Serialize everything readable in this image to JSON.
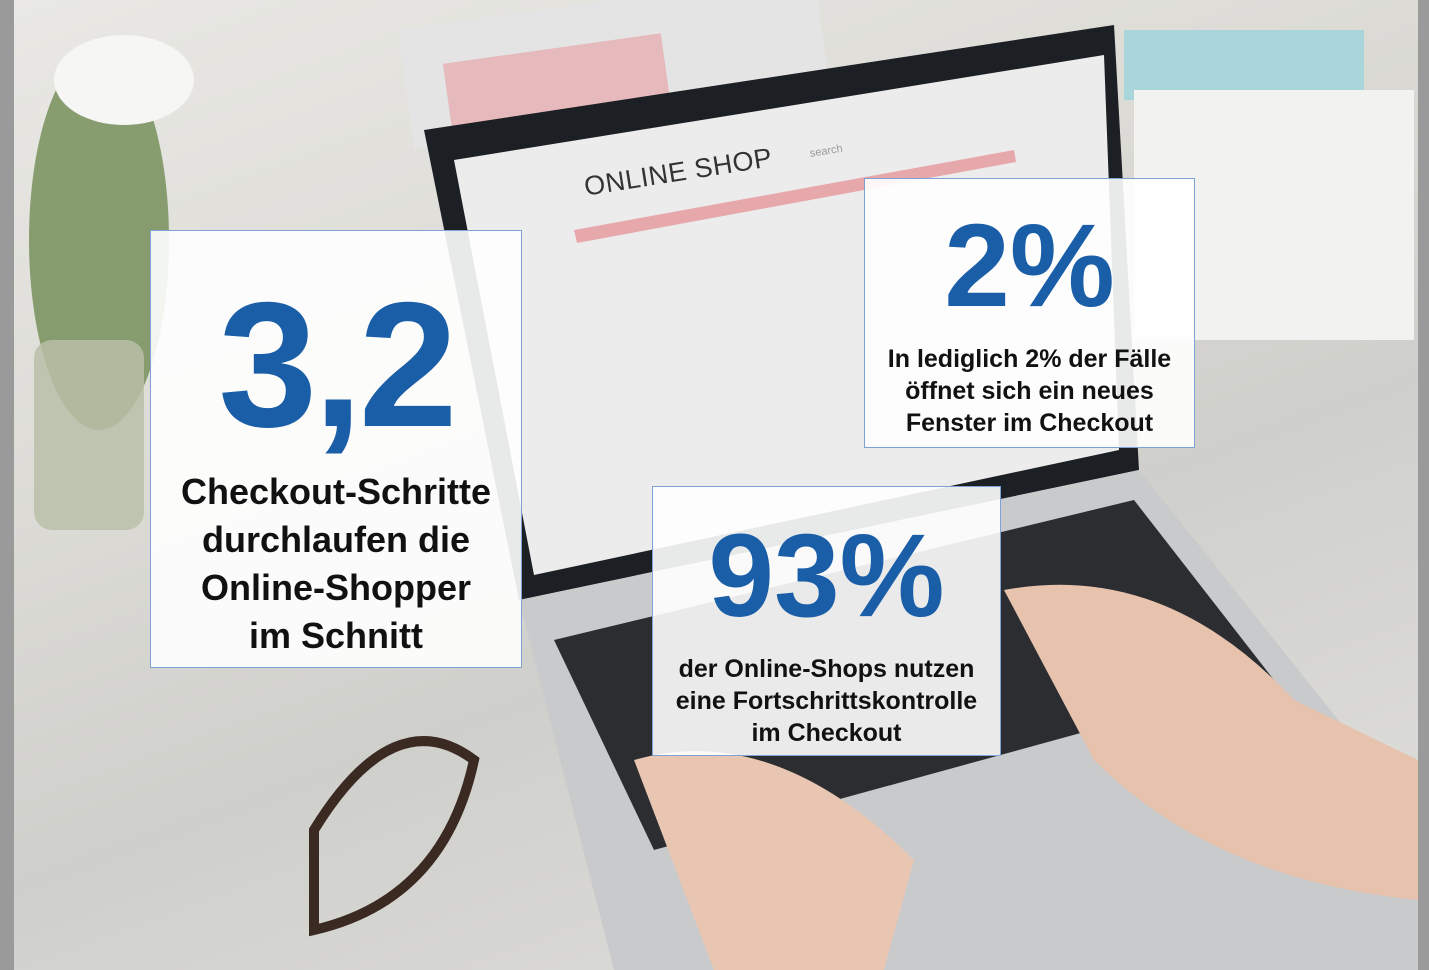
{
  "background": {
    "screen_title": "ONLINE SHOP",
    "search_placeholder": "search"
  },
  "cards": [
    {
      "value": "3,2",
      "text": [
        "Checkout-Schritte",
        "durchlaufen die",
        "Online-Shopper",
        "im Schnitt"
      ]
    },
    {
      "value": "2%",
      "text": [
        "In lediglich 2% der Fälle",
        "öffnet sich ein neues",
        "Fenster im Checkout"
      ]
    },
    {
      "value": "93%",
      "text": [
        "der Online-Shops nutzen",
        "eine Fortschrittskontrolle",
        "im Checkout"
      ]
    }
  ],
  "colors": {
    "accent": "#1b5ea8",
    "border": "#7fa2d6"
  }
}
